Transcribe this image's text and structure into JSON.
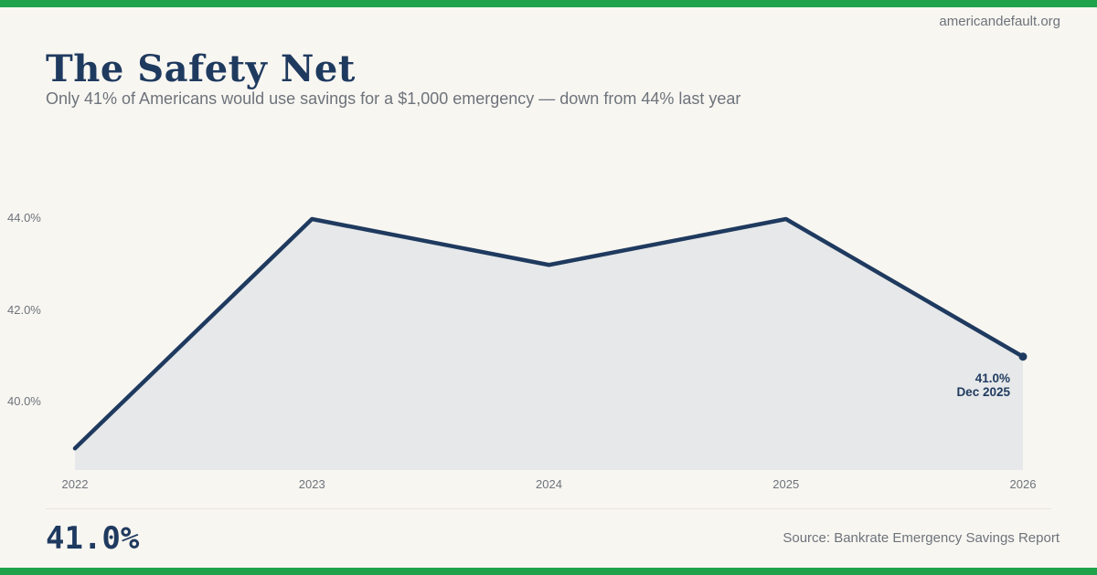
{
  "brand": {
    "site": "americandefault.org"
  },
  "header": {
    "title": "The Safety Net",
    "subtitle": "Only 41% of Americans would use savings for a $1,000 emergency — down from 44% last year"
  },
  "chart_data": {
    "type": "area",
    "x": [
      2022,
      2023,
      2024,
      2025,
      2026
    ],
    "x_tick_labels": [
      "2022",
      "2023",
      "2024",
      "2025",
      "2026"
    ],
    "values": [
      39.0,
      44.0,
      43.0,
      44.0,
      41.0
    ],
    "y_ticks": [
      {
        "value": 44.0,
        "label": "44.0%"
      },
      {
        "value": 42.0,
        "label": "42.0%"
      },
      {
        "value": 40.0,
        "label": "40.0%"
      }
    ],
    "ylim": [
      38.5,
      44.8
    ],
    "grid": false,
    "annotation": {
      "line1": "41.0%",
      "line2": "Dec 2025"
    },
    "colors": {
      "line": "#1f3a5f",
      "fill": "#e6e8e9",
      "dot": "#1f3a5f"
    }
  },
  "footer": {
    "stat": "41.0%",
    "source": "Source: Bankrate Emergency Savings Report"
  },
  "colors": {
    "accent_green": "#1ea34a",
    "navy": "#1f3a5f",
    "background": "#f8f6f1",
    "muted_text": "#6d737b"
  }
}
